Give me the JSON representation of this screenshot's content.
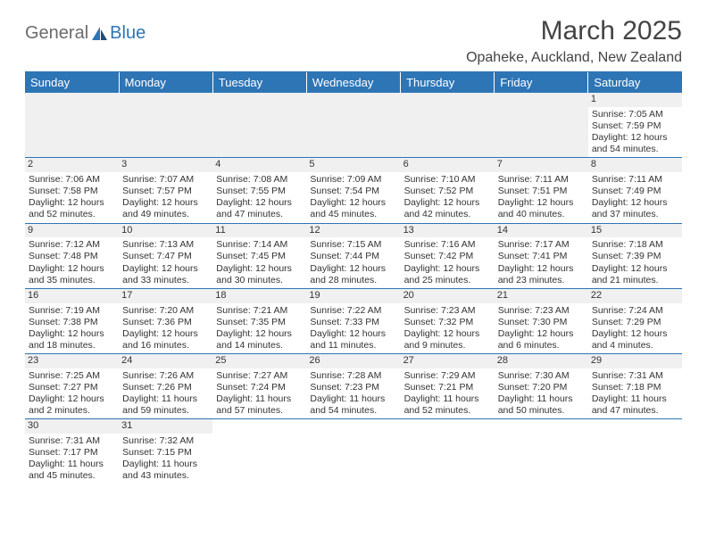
{
  "brand": {
    "part1": "General",
    "part2": "Blue"
  },
  "title": "March 2025",
  "subtitle": "Opaheke, Auckland, New Zealand",
  "colors": {
    "accent": "#2e75b6",
    "header_bg": "#2e75b6",
    "header_text": "#ffffff",
    "daynum_bg": "#f0f0f0",
    "text": "#333333",
    "page_bg": "#ffffff",
    "rule": "#2e75b6"
  },
  "weekdays": [
    "Sunday",
    "Monday",
    "Tuesday",
    "Wednesday",
    "Thursday",
    "Friday",
    "Saturday"
  ],
  "weeks": [
    [
      null,
      null,
      null,
      null,
      null,
      null,
      {
        "n": "1",
        "sr": "Sunrise: 7:05 AM",
        "ss": "Sunset: 7:59 PM",
        "dl": "Daylight: 12 hours and 54 minutes."
      }
    ],
    [
      {
        "n": "2",
        "sr": "Sunrise: 7:06 AM",
        "ss": "Sunset: 7:58 PM",
        "dl": "Daylight: 12 hours and 52 minutes."
      },
      {
        "n": "3",
        "sr": "Sunrise: 7:07 AM",
        "ss": "Sunset: 7:57 PM",
        "dl": "Daylight: 12 hours and 49 minutes."
      },
      {
        "n": "4",
        "sr": "Sunrise: 7:08 AM",
        "ss": "Sunset: 7:55 PM",
        "dl": "Daylight: 12 hours and 47 minutes."
      },
      {
        "n": "5",
        "sr": "Sunrise: 7:09 AM",
        "ss": "Sunset: 7:54 PM",
        "dl": "Daylight: 12 hours and 45 minutes."
      },
      {
        "n": "6",
        "sr": "Sunrise: 7:10 AM",
        "ss": "Sunset: 7:52 PM",
        "dl": "Daylight: 12 hours and 42 minutes."
      },
      {
        "n": "7",
        "sr": "Sunrise: 7:11 AM",
        "ss": "Sunset: 7:51 PM",
        "dl": "Daylight: 12 hours and 40 minutes."
      },
      {
        "n": "8",
        "sr": "Sunrise: 7:11 AM",
        "ss": "Sunset: 7:49 PM",
        "dl": "Daylight: 12 hours and 37 minutes."
      }
    ],
    [
      {
        "n": "9",
        "sr": "Sunrise: 7:12 AM",
        "ss": "Sunset: 7:48 PM",
        "dl": "Daylight: 12 hours and 35 minutes."
      },
      {
        "n": "10",
        "sr": "Sunrise: 7:13 AM",
        "ss": "Sunset: 7:47 PM",
        "dl": "Daylight: 12 hours and 33 minutes."
      },
      {
        "n": "11",
        "sr": "Sunrise: 7:14 AM",
        "ss": "Sunset: 7:45 PM",
        "dl": "Daylight: 12 hours and 30 minutes."
      },
      {
        "n": "12",
        "sr": "Sunrise: 7:15 AM",
        "ss": "Sunset: 7:44 PM",
        "dl": "Daylight: 12 hours and 28 minutes."
      },
      {
        "n": "13",
        "sr": "Sunrise: 7:16 AM",
        "ss": "Sunset: 7:42 PM",
        "dl": "Daylight: 12 hours and 25 minutes."
      },
      {
        "n": "14",
        "sr": "Sunrise: 7:17 AM",
        "ss": "Sunset: 7:41 PM",
        "dl": "Daylight: 12 hours and 23 minutes."
      },
      {
        "n": "15",
        "sr": "Sunrise: 7:18 AM",
        "ss": "Sunset: 7:39 PM",
        "dl": "Daylight: 12 hours and 21 minutes."
      }
    ],
    [
      {
        "n": "16",
        "sr": "Sunrise: 7:19 AM",
        "ss": "Sunset: 7:38 PM",
        "dl": "Daylight: 12 hours and 18 minutes."
      },
      {
        "n": "17",
        "sr": "Sunrise: 7:20 AM",
        "ss": "Sunset: 7:36 PM",
        "dl": "Daylight: 12 hours and 16 minutes."
      },
      {
        "n": "18",
        "sr": "Sunrise: 7:21 AM",
        "ss": "Sunset: 7:35 PM",
        "dl": "Daylight: 12 hours and 14 minutes."
      },
      {
        "n": "19",
        "sr": "Sunrise: 7:22 AM",
        "ss": "Sunset: 7:33 PM",
        "dl": "Daylight: 12 hours and 11 minutes."
      },
      {
        "n": "20",
        "sr": "Sunrise: 7:23 AM",
        "ss": "Sunset: 7:32 PM",
        "dl": "Daylight: 12 hours and 9 minutes."
      },
      {
        "n": "21",
        "sr": "Sunrise: 7:23 AM",
        "ss": "Sunset: 7:30 PM",
        "dl": "Daylight: 12 hours and 6 minutes."
      },
      {
        "n": "22",
        "sr": "Sunrise: 7:24 AM",
        "ss": "Sunset: 7:29 PM",
        "dl": "Daylight: 12 hours and 4 minutes."
      }
    ],
    [
      {
        "n": "23",
        "sr": "Sunrise: 7:25 AM",
        "ss": "Sunset: 7:27 PM",
        "dl": "Daylight: 12 hours and 2 minutes."
      },
      {
        "n": "24",
        "sr": "Sunrise: 7:26 AM",
        "ss": "Sunset: 7:26 PM",
        "dl": "Daylight: 11 hours and 59 minutes."
      },
      {
        "n": "25",
        "sr": "Sunrise: 7:27 AM",
        "ss": "Sunset: 7:24 PM",
        "dl": "Daylight: 11 hours and 57 minutes."
      },
      {
        "n": "26",
        "sr": "Sunrise: 7:28 AM",
        "ss": "Sunset: 7:23 PM",
        "dl": "Daylight: 11 hours and 54 minutes."
      },
      {
        "n": "27",
        "sr": "Sunrise: 7:29 AM",
        "ss": "Sunset: 7:21 PM",
        "dl": "Daylight: 11 hours and 52 minutes."
      },
      {
        "n": "28",
        "sr": "Sunrise: 7:30 AM",
        "ss": "Sunset: 7:20 PM",
        "dl": "Daylight: 11 hours and 50 minutes."
      },
      {
        "n": "29",
        "sr": "Sunrise: 7:31 AM",
        "ss": "Sunset: 7:18 PM",
        "dl": "Daylight: 11 hours and 47 minutes."
      }
    ],
    [
      {
        "n": "30",
        "sr": "Sunrise: 7:31 AM",
        "ss": "Sunset: 7:17 PM",
        "dl": "Daylight: 11 hours and 45 minutes."
      },
      {
        "n": "31",
        "sr": "Sunrise: 7:32 AM",
        "ss": "Sunset: 7:15 PM",
        "dl": "Daylight: 11 hours and 43 minutes."
      },
      null,
      null,
      null,
      null,
      null
    ]
  ]
}
